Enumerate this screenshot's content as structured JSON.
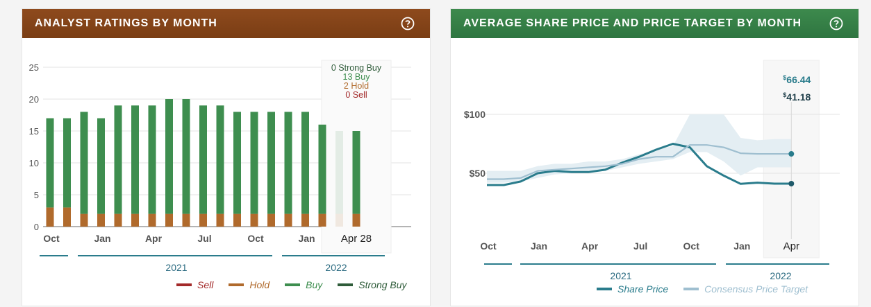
{
  "ratings_panel": {
    "title": "ANALYST RATINGS BY MONTH",
    "tooltip": {
      "strong_buy": "0 Strong Buy",
      "buy": "13 Buy",
      "hold": "2 Hold",
      "sell": "0 Sell",
      "date": "Apr 28"
    },
    "year_labels": [
      "2021",
      "2022"
    ],
    "legend": [
      {
        "label": "Sell",
        "color": "#a32a2a"
      },
      {
        "label": "Hold",
        "color": "#b06a2c"
      },
      {
        "label": "Buy",
        "color": "#3e8e4f"
      },
      {
        "label": "Strong Buy",
        "color": "#2f5c3a"
      }
    ]
  },
  "price_panel": {
    "title": "AVERAGE SHARE PRICE AND PRICE TARGET BY MONTH",
    "tooltip": {
      "target_currency": "$",
      "target_value": "66.44",
      "price_currency": "$",
      "price_value": "41.18",
      "date": "Apr"
    },
    "year_labels": [
      "2021",
      "2022"
    ],
    "legend": [
      {
        "label": "Share Price",
        "color": "#2a7c8c"
      },
      {
        "label": "Consensus Price Target",
        "color": "#9fbfd0"
      }
    ]
  },
  "chart_data": [
    {
      "type": "bar",
      "title": "ANALYST RATINGS BY MONTH",
      "stacked": true,
      "categories": [
        "Oct",
        "Nov",
        "Dec",
        "Jan",
        "Feb",
        "Mar",
        "Apr",
        "May",
        "Jun",
        "Jul",
        "Aug",
        "Sep",
        "Oct",
        "Nov",
        "Dec",
        "Jan",
        "Feb",
        "Mar",
        "Apr 28"
      ],
      "tick_labels": [
        "Oct",
        "Jan",
        "Apr",
        "Jul",
        "Oct",
        "Jan",
        "Apr 28"
      ],
      "tick_indices": [
        0,
        3,
        6,
        9,
        12,
        15,
        18
      ],
      "y_ticks": [
        "0",
        "5",
        "10",
        "15",
        "20",
        "25"
      ],
      "ylim": [
        0,
        25
      ],
      "grid": true,
      "legend_position": "bottom-right",
      "series": [
        {
          "name": "Sell",
          "color": "#a32a2a",
          "values": [
            0,
            0,
            0,
            0,
            0,
            0,
            0,
            0,
            0,
            0,
            0,
            0,
            0,
            0,
            0,
            0,
            0,
            0,
            0
          ]
        },
        {
          "name": "Hold",
          "color": "#b06a2c",
          "values": [
            3,
            3,
            2,
            2,
            2,
            2,
            2,
            2,
            2,
            2,
            2,
            2,
            2,
            2,
            2,
            2,
            2,
            2,
            2
          ]
        },
        {
          "name": "Buy",
          "color": "#3e8e4f",
          "values": [
            14,
            14,
            16,
            15,
            17,
            17,
            17,
            18,
            18,
            17,
            17,
            16,
            16,
            16,
            16,
            16,
            14,
            13,
            13
          ]
        },
        {
          "name": "Strong Buy",
          "color": "#2f5c3a",
          "values": [
            0,
            0,
            0,
            0,
            0,
            0,
            0,
            0,
            0,
            0,
            0,
            0,
            0,
            0,
            0,
            0,
            0,
            0,
            0
          ]
        }
      ],
      "faded_indices": [
        17
      ]
    },
    {
      "type": "line",
      "title": "AVERAGE SHARE PRICE AND PRICE TARGET BY MONTH",
      "x": [
        "Oct",
        "Nov",
        "Dec",
        "Jan",
        "Feb",
        "Mar",
        "Apr",
        "May",
        "Jun",
        "Jul",
        "Aug",
        "Sep",
        "Oct",
        "Nov",
        "Dec",
        "Jan",
        "Feb",
        "Mar",
        "Apr"
      ],
      "tick_labels": [
        "Oct",
        "Jan",
        "Apr",
        "Jul",
        "Oct",
        "Jan",
        "Apr"
      ],
      "tick_indices": [
        0,
        3,
        6,
        9,
        12,
        15,
        18
      ],
      "y_ticks": [
        "$50",
        "$100"
      ],
      "y_tick_values": [
        50,
        100
      ],
      "ylim": [
        0,
        136
      ],
      "grid": true,
      "legend_position": "bottom-right",
      "series": [
        {
          "name": "Share Price",
          "color": "#2a7c8c",
          "values": [
            40,
            40,
            43,
            50,
            52,
            51,
            51,
            53,
            59,
            64,
            70,
            75,
            72,
            56,
            48,
            41,
            42,
            41.18,
            41.18
          ]
        },
        {
          "name": "Consensus Price Target",
          "color": "#9fbfd0",
          "values": [
            45,
            45,
            46,
            52,
            53,
            54,
            55,
            56,
            58,
            62,
            64,
            64,
            74,
            74,
            72,
            67,
            66.44,
            66.44,
            66.44
          ]
        }
      ],
      "band": {
        "low": [
          42,
          42,
          43,
          46,
          49,
          50,
          51,
          52,
          55,
          58,
          60,
          62,
          68,
          68,
          60,
          48,
          55,
          55,
          55
        ],
        "high": [
          52,
          52,
          52,
          56,
          58,
          58,
          60,
          60,
          62,
          66,
          70,
          73,
          100,
          100,
          100,
          80,
          78,
          79,
          79
        ]
      }
    }
  ]
}
